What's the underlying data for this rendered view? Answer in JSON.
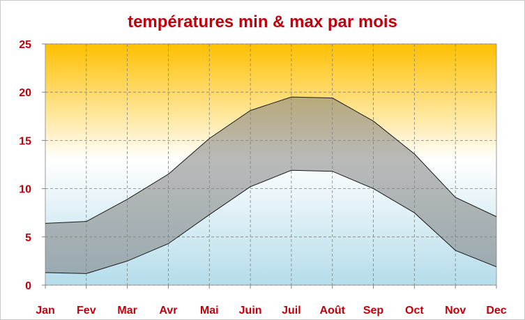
{
  "chart_data": {
    "type": "area",
    "title": "températures min & max par mois",
    "xlabel": "",
    "ylabel": "",
    "categories": [
      "Jan",
      "Fev",
      "Mar",
      "Avr",
      "Mai",
      "Juin",
      "Juil",
      "Août",
      "Sep",
      "Oct",
      "Nov",
      "Dec"
    ],
    "series": [
      {
        "values": [
          1.3,
          1.2,
          2.5,
          4.3,
          7.3,
          10.2,
          11.9,
          11.8,
          10.0,
          7.5,
          3.6,
          1.9
        ]
      },
      {
        "values": [
          6.4,
          6.6,
          8.9,
          11.5,
          15.2,
          18.1,
          19.5,
          19.4,
          17.0,
          13.6,
          9.1,
          7.1
        ]
      }
    ],
    "ylim": [
      0,
      25
    ],
    "yticks": [
      "0",
      "5",
      "10",
      "15",
      "20",
      "25"
    ],
    "grid": true,
    "band_color": "#808080",
    "line_color": "#1a1a1a",
    "text_color": "#c0000c",
    "background_gradient": [
      "#ffc000",
      "#ffffff",
      "#b4dcea"
    ]
  }
}
